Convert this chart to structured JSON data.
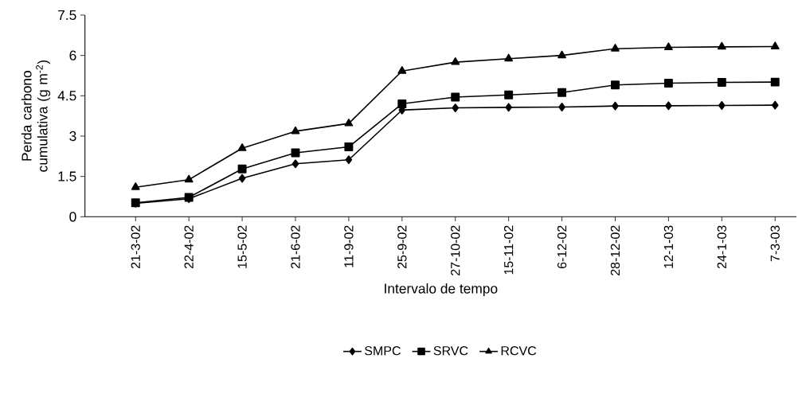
{
  "chart_data": {
    "type": "line",
    "xlabel": "Intervalo de tempo",
    "ylabel": "Perda carbono cumulativa (g m$^{-2}$)",
    "categories": [
      "21-3-02",
      "22-4-02",
      "15-5-02",
      "21-6-02",
      "11-9-02",
      "25-9-02",
      "27-10-02",
      "15-11-02",
      "6-12-02",
      "28-12-02",
      "12-1-03",
      "24-1-03",
      "7-3-03"
    ],
    "series": [
      {
        "name": "SMPC",
        "color": "#000000",
        "marker": "diamond",
        "values": [
          0.5,
          0.67,
          1.43,
          1.97,
          2.12,
          3.97,
          4.05,
          4.07,
          4.08,
          4.12,
          4.13,
          4.14,
          4.15
        ]
      },
      {
        "name": "SRVC",
        "color": "#000000",
        "marker": "square",
        "values": [
          0.52,
          0.72,
          1.78,
          2.38,
          2.6,
          4.2,
          4.45,
          4.53,
          4.62,
          4.9,
          4.97,
          5.0,
          5.01
        ]
      },
      {
        "name": "RCVC",
        "color": "#000000",
        "marker": "triangle",
        "values": [
          1.1,
          1.38,
          2.55,
          3.18,
          3.47,
          5.42,
          5.75,
          5.88,
          6.0,
          6.25,
          6.3,
          6.32,
          6.33
        ]
      }
    ],
    "ylim": [
      0,
      7.5
    ],
    "yticks": [
      0,
      1.5,
      3,
      4.5,
      6,
      7.5
    ],
    "grid": false,
    "legend": "bottom",
    "line_style": "solid"
  }
}
